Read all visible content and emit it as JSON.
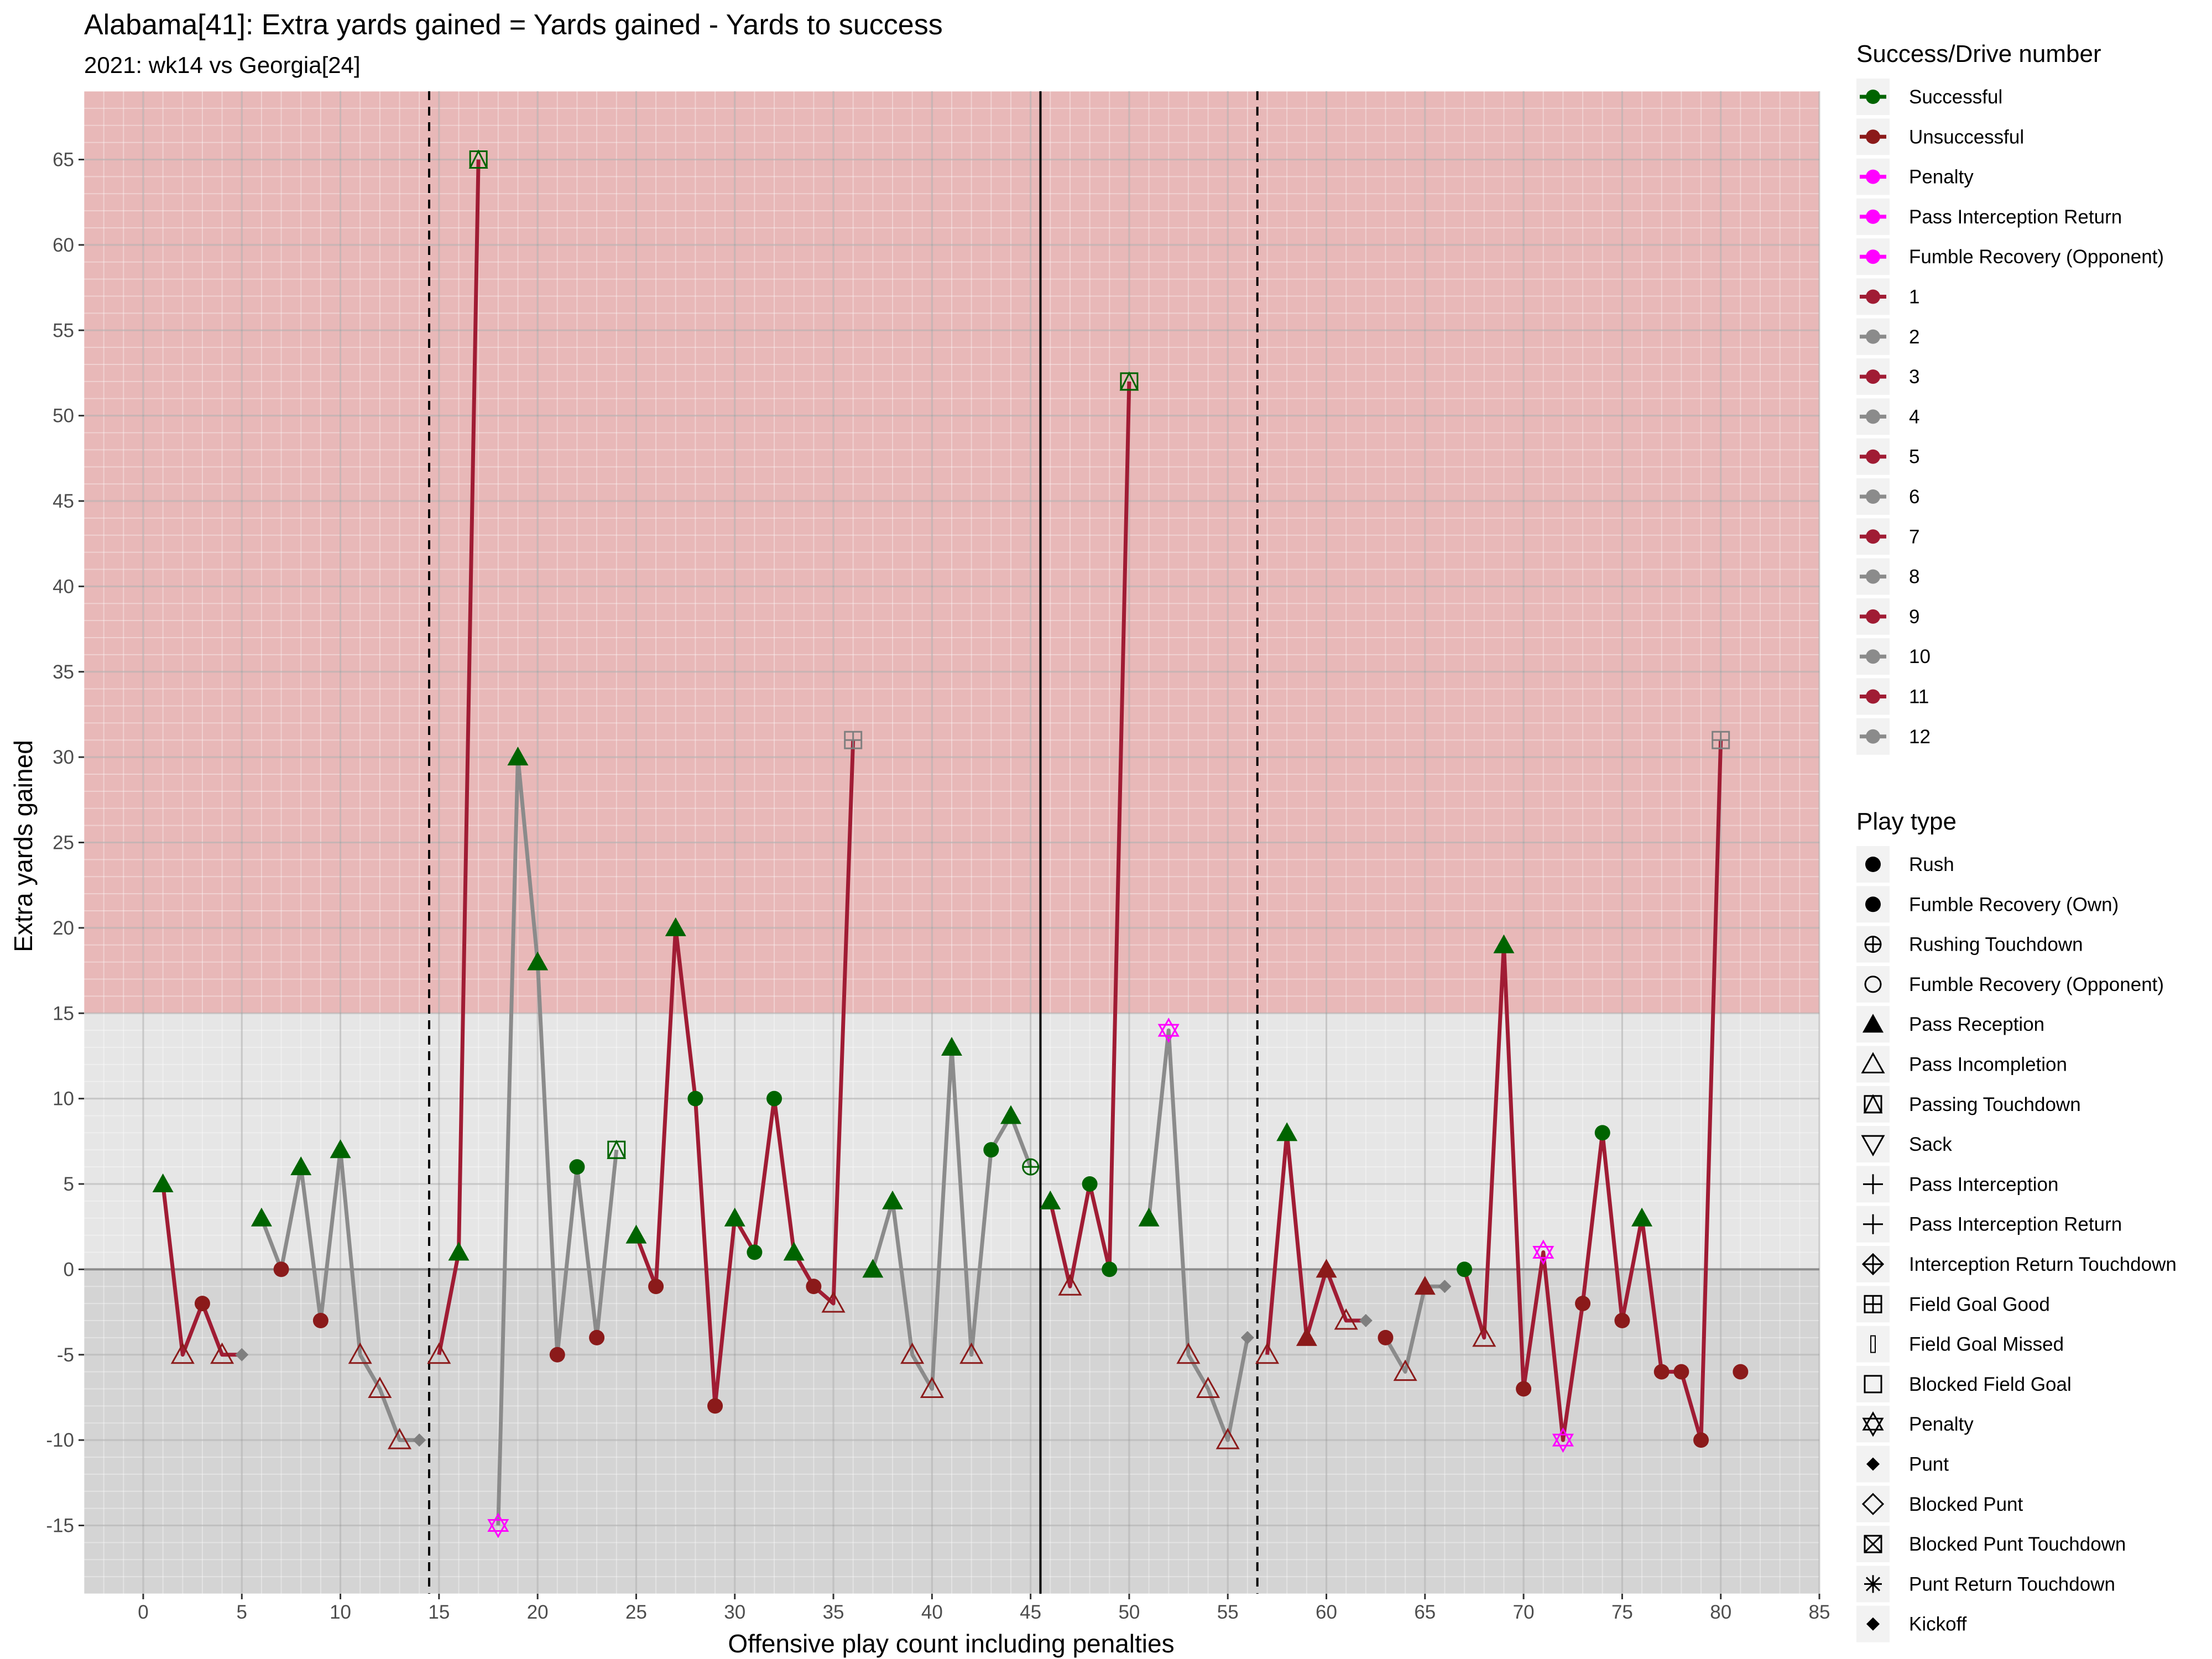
{
  "chart_data": {
    "type": "line",
    "title": "Alabama[41]: Extra yards gained = Yards gained - Yards to success",
    "subtitle": "2021: wk14 vs Georgia[24]",
    "xlabel": "Offensive play count including penalties",
    "ylabel": "Extra yards gained",
    "xlim": [
      -3,
      85
    ],
    "ylim": [
      -19,
      69
    ],
    "x_ticks": [
      0,
      5,
      10,
      15,
      20,
      25,
      30,
      35,
      40,
      45,
      50,
      55,
      60,
      65,
      70,
      75,
      80,
      85
    ],
    "y_ticks": [
      -15,
      -10,
      -5,
      0,
      5,
      10,
      15,
      20,
      25,
      30,
      35,
      40,
      45,
      50,
      55,
      60,
      65
    ],
    "bands": [
      {
        "from": 15,
        "to": 69,
        "color": "#e8b8b8"
      },
      {
        "from": -19,
        "to": 0,
        "color": "#d4d4d4"
      },
      {
        "from": 0,
        "to": 15,
        "color": "#e6e6e6"
      }
    ],
    "vlines": [
      {
        "x": 14.5,
        "style": "dashed"
      },
      {
        "x": 45.5,
        "style": "solid"
      },
      {
        "x": 56.5,
        "style": "dashed"
      }
    ],
    "colors": {
      "successful": "#006400",
      "unsuccessful": "#8b1a1a",
      "penalty": "#ff00ff",
      "drive_odd": "#a01c34",
      "drive_even": "#8b8b8b",
      "neutral": "#7f7f7f"
    },
    "drives": [
      {
        "drive": 1,
        "points": [
          [
            1,
            5,
            "Pass Reception",
            "s"
          ],
          [
            2,
            -5,
            "Pass Incompletion",
            "u"
          ],
          [
            3,
            -2,
            "Rush",
            "u"
          ],
          [
            4,
            -5,
            "Pass Incompletion",
            "u"
          ],
          [
            5,
            -5,
            "Punt",
            "n"
          ]
        ]
      },
      {
        "drive": 2,
        "points": [
          [
            6,
            3,
            "Pass Reception",
            "s"
          ],
          [
            7,
            0,
            "Rush",
            "u"
          ],
          [
            8,
            6,
            "Pass Reception",
            "s"
          ],
          [
            9,
            -3,
            "Rush",
            "u"
          ],
          [
            10,
            7,
            "Pass Reception",
            "s"
          ],
          [
            11,
            -5,
            "Pass Incompletion",
            "u"
          ],
          [
            12,
            -7,
            "Pass Incompletion",
            "u"
          ],
          [
            13,
            -10,
            "Pass Incompletion",
            "u"
          ],
          [
            14,
            -10,
            "Punt",
            "n"
          ]
        ]
      },
      {
        "drive": 3,
        "points": [
          [
            15,
            -5,
            "Pass Incompletion",
            "u"
          ],
          [
            16,
            1,
            "Pass Reception",
            "s"
          ],
          [
            17,
            65,
            "Passing Touchdown",
            "s"
          ]
        ]
      },
      {
        "drive": 4,
        "points": [
          [
            18,
            -15,
            "Penalty",
            "p"
          ],
          [
            19,
            30,
            "Pass Reception",
            "s"
          ],
          [
            20,
            18,
            "Pass Reception",
            "s"
          ],
          [
            21,
            -5,
            "Rush",
            "u"
          ],
          [
            22,
            6,
            "Rush",
            "s"
          ],
          [
            23,
            -4,
            "Rush",
            "u"
          ],
          [
            24,
            7,
            "Passing Touchdown",
            "s"
          ]
        ]
      },
      {
        "drive": 5,
        "points": [
          [
            25,
            2,
            "Pass Reception",
            "s"
          ],
          [
            26,
            -1,
            "Rush",
            "u"
          ],
          [
            27,
            20,
            "Pass Reception",
            "s"
          ],
          [
            28,
            10,
            "Rush",
            "s"
          ],
          [
            29,
            -8,
            "Rush",
            "u"
          ],
          [
            30,
            3,
            "Pass Reception",
            "s"
          ],
          [
            31,
            1,
            "Rush",
            "s"
          ],
          [
            32,
            10,
            "Rush",
            "s"
          ],
          [
            33,
            1,
            "Pass Reception",
            "s"
          ],
          [
            34,
            -1,
            "Rush",
            "u"
          ],
          [
            35,
            -2,
            "Pass Incompletion",
            "u"
          ],
          [
            36,
            31,
            "Field Goal Good",
            "n"
          ]
        ]
      },
      {
        "drive": 6,
        "points": [
          [
            37,
            0,
            "Pass Reception",
            "s"
          ],
          [
            38,
            4,
            "Pass Reception",
            "s"
          ],
          [
            39,
            -5,
            "Pass Incompletion",
            "u"
          ],
          [
            40,
            -7,
            "Pass Incompletion",
            "u"
          ],
          [
            41,
            13,
            "Pass Reception",
            "s"
          ],
          [
            42,
            -5,
            "Pass Incompletion",
            "u"
          ],
          [
            43,
            7,
            "Rush",
            "s"
          ],
          [
            44,
            9,
            "Pass Reception",
            "s"
          ],
          [
            45,
            6,
            "Rushing Touchdown",
            "s"
          ]
        ]
      },
      {
        "drive": 7,
        "points": [
          [
            46,
            4,
            "Pass Reception",
            "s"
          ],
          [
            47,
            -1,
            "Pass Incompletion",
            "u"
          ],
          [
            48,
            5,
            "Rush",
            "s"
          ],
          [
            49,
            0,
            "Rush",
            "s"
          ],
          [
            50,
            52,
            "Passing Touchdown",
            "s"
          ]
        ]
      },
      {
        "drive": 8,
        "points": [
          [
            51,
            3,
            "Pass Reception",
            "s"
          ],
          [
            52,
            14,
            "Penalty",
            "p"
          ],
          [
            53,
            -5,
            "Pass Incompletion",
            "u"
          ],
          [
            54,
            -7,
            "Pass Incompletion",
            "u"
          ],
          [
            55,
            -10,
            "Pass Incompletion",
            "u"
          ],
          [
            56,
            -4,
            "Punt",
            "n"
          ]
        ]
      },
      {
        "drive": 9,
        "points": [
          [
            57,
            -5,
            "Pass Incompletion",
            "u"
          ],
          [
            58,
            8,
            "Pass Reception",
            "s"
          ],
          [
            59,
            -4,
            "Pass Reception",
            "u"
          ],
          [
            60,
            0,
            "Pass Reception",
            "u"
          ],
          [
            61,
            -3,
            "Pass Incompletion",
            "u"
          ],
          [
            62,
            -3,
            "Punt",
            "n"
          ]
        ]
      },
      {
        "drive": 10,
        "points": [
          [
            63,
            -4,
            "Rush",
            "u"
          ],
          [
            64,
            -6,
            "Pass Incompletion",
            "u"
          ],
          [
            65,
            -1,
            "Pass Reception",
            "u"
          ],
          [
            66,
            -1,
            "Punt",
            "n"
          ]
        ]
      },
      {
        "drive": 11,
        "points": [
          [
            67,
            0,
            "Rush",
            "s"
          ],
          [
            68,
            -4,
            "Pass Incompletion",
            "u"
          ],
          [
            69,
            19,
            "Pass Reception",
            "s"
          ],
          [
            70,
            -7,
            "Rush",
            "u"
          ],
          [
            71,
            1,
            "Penalty",
            "p"
          ],
          [
            72,
            -10,
            "Penalty",
            "p"
          ],
          [
            73,
            -2,
            "Rush",
            "u"
          ],
          [
            74,
            8,
            "Rush",
            "s"
          ],
          [
            75,
            -3,
            "Rush",
            "u"
          ],
          [
            76,
            3,
            "Pass Reception",
            "s"
          ],
          [
            77,
            -6,
            "Rush",
            "u"
          ],
          [
            78,
            -6,
            "Rush",
            "u"
          ],
          [
            79,
            -10,
            "Rush",
            "u"
          ],
          [
            80,
            31,
            "Field Goal Good",
            "n"
          ]
        ]
      },
      {
        "drive": 12,
        "points": [
          [
            81,
            -6,
            "Rush",
            "u"
          ]
        ]
      }
    ],
    "legend_success": {
      "title": "Success/Drive number",
      "items": [
        {
          "label": "Successful",
          "color": "#006400"
        },
        {
          "label": "Unsuccessful",
          "color": "#8b1a1a"
        },
        {
          "label": "Penalty",
          "color": "#ff00ff"
        },
        {
          "label": "Pass Interception Return",
          "color": "#ff00ff"
        },
        {
          "label": "Fumble Recovery (Opponent)",
          "color": "#ff00ff"
        },
        {
          "label": "1",
          "color": "#a01c34"
        },
        {
          "label": "2",
          "color": "#8b8b8b"
        },
        {
          "label": "3",
          "color": "#a01c34"
        },
        {
          "label": "4",
          "color": "#8b8b8b"
        },
        {
          "label": "5",
          "color": "#a01c34"
        },
        {
          "label": "6",
          "color": "#8b8b8b"
        },
        {
          "label": "7",
          "color": "#a01c34"
        },
        {
          "label": "8",
          "color": "#8b8b8b"
        },
        {
          "label": "9",
          "color": "#a01c34"
        },
        {
          "label": "10",
          "color": "#8b8b8b"
        },
        {
          "label": "11",
          "color": "#a01c34"
        },
        {
          "label": "12",
          "color": "#8b8b8b"
        }
      ]
    },
    "legend_play": {
      "title": "Play type",
      "items": [
        {
          "label": "Rush",
          "shape": "dot"
        },
        {
          "label": "Fumble Recovery (Own)",
          "shape": "dot"
        },
        {
          "label": "Rushing Touchdown",
          "shape": "circleplus"
        },
        {
          "label": "Fumble Recovery (Opponent)",
          "shape": "circle"
        },
        {
          "label": "Pass Reception",
          "shape": "tri"
        },
        {
          "label": "Pass Incompletion",
          "shape": "tri-open"
        },
        {
          "label": "Passing Touchdown",
          "shape": "square-tri"
        },
        {
          "label": "Sack",
          "shape": "tri-down-open"
        },
        {
          "label": "Pass Interception",
          "shape": "plus"
        },
        {
          "label": "Pass Interception Return",
          "shape": "plus"
        },
        {
          "label": "Interception Return Touchdown",
          "shape": "diamond-plus"
        },
        {
          "label": "Field Goal Good",
          "shape": "square-plus"
        },
        {
          "label": "Field Goal Missed",
          "shape": "bar"
        },
        {
          "label": "Blocked Field Goal",
          "shape": "square-open"
        },
        {
          "label": "Penalty",
          "shape": "star6"
        },
        {
          "label": "Punt",
          "shape": "diamond"
        },
        {
          "label": "Blocked Punt",
          "shape": "diamond-open"
        },
        {
          "label": "Blocked Punt Touchdown",
          "shape": "square-x"
        },
        {
          "label": "Punt Return Touchdown",
          "shape": "asterisk"
        },
        {
          "label": "Kickoff",
          "shape": "diamond"
        }
      ]
    }
  }
}
